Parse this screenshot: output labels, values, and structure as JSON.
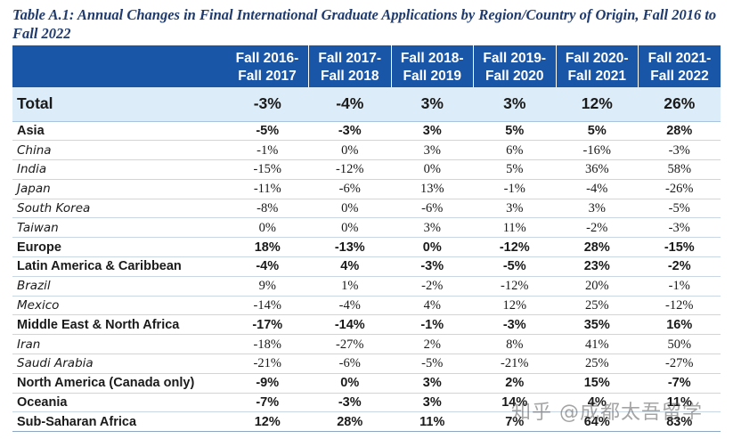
{
  "title": "Table A.1: Annual Changes in Final International Graduate Applications by Region/Country of Origin, Fall 2016 to Fall 2022",
  "columns": [
    {
      "line1": "Fall 2016-",
      "line2": "Fall 2017"
    },
    {
      "line1": "Fall 2017-",
      "line2": "Fall 2018"
    },
    {
      "line1": "Fall 2018-",
      "line2": "Fall 2019"
    },
    {
      "line1": "Fall 2019-",
      "line2": "Fall 2020"
    },
    {
      "line1": "Fall 2020-",
      "line2": "Fall 2021"
    },
    {
      "line1": "Fall 2021-",
      "line2": "Fall 2022"
    }
  ],
  "total": {
    "label": "Total",
    "values": [
      "-3%",
      "-4%",
      "3%",
      "3%",
      "12%",
      "26%"
    ]
  },
  "rows": [
    {
      "label": "Asia",
      "kind": "region",
      "values": [
        "-5%",
        "-3%",
        "3%",
        "5%",
        "5%",
        "28%"
      ]
    },
    {
      "label": "China",
      "kind": "country",
      "values": [
        "-1%",
        "0%",
        "3%",
        "6%",
        "-16%",
        "-3%"
      ]
    },
    {
      "label": "India",
      "kind": "country",
      "values": [
        "-15%",
        "-12%",
        "0%",
        "5%",
        "36%",
        "58%"
      ]
    },
    {
      "label": "Japan",
      "kind": "country",
      "values": [
        "-11%",
        "-6%",
        "13%",
        "-1%",
        "-4%",
        "-26%"
      ]
    },
    {
      "label": "South Korea",
      "kind": "country",
      "values": [
        "-8%",
        "0%",
        "-6%",
        "3%",
        "3%",
        "-5%"
      ]
    },
    {
      "label": "Taiwan",
      "kind": "country",
      "values": [
        "0%",
        "0%",
        "3%",
        "11%",
        "-2%",
        "-3%"
      ]
    },
    {
      "label": "Europe",
      "kind": "region",
      "values": [
        "18%",
        "-13%",
        "0%",
        "-12%",
        "28%",
        "-15%"
      ]
    },
    {
      "label": "Latin America & Caribbean",
      "kind": "region",
      "values": [
        "-4%",
        "4%",
        "-3%",
        "-5%",
        "23%",
        "-2%"
      ]
    },
    {
      "label": "Brazil",
      "kind": "country",
      "values": [
        "9%",
        "1%",
        "-2%",
        "-12%",
        "20%",
        "-1%"
      ]
    },
    {
      "label": "Mexico",
      "kind": "country",
      "values": [
        "-14%",
        "-4%",
        "4%",
        "12%",
        "25%",
        "-12%"
      ]
    },
    {
      "label": "Middle East & North Africa",
      "kind": "region",
      "values": [
        "-17%",
        "-14%",
        "-1%",
        "-3%",
        "35%",
        "16%"
      ]
    },
    {
      "label": "Iran",
      "kind": "country",
      "values": [
        "-18%",
        "-27%",
        "2%",
        "8%",
        "41%",
        "50%"
      ]
    },
    {
      "label": "Saudi Arabia",
      "kind": "country",
      "values": [
        "-21%",
        "-6%",
        "-5%",
        "-21%",
        "25%",
        "-27%"
      ]
    },
    {
      "label": "North America (Canada only)",
      "kind": "region",
      "values": [
        "-9%",
        "0%",
        "3%",
        "2%",
        "15%",
        "-7%"
      ]
    },
    {
      "label": "Oceania",
      "kind": "region",
      "values": [
        "-7%",
        "-3%",
        "3%",
        "14%",
        "4%",
        "11%"
      ]
    },
    {
      "label": "Sub-Saharan Africa",
      "kind": "region",
      "values": [
        "12%",
        "28%",
        "11%",
        "7%",
        "64%",
        "83%"
      ]
    }
  ],
  "watermark": "知乎 @成都太吾留学"
}
